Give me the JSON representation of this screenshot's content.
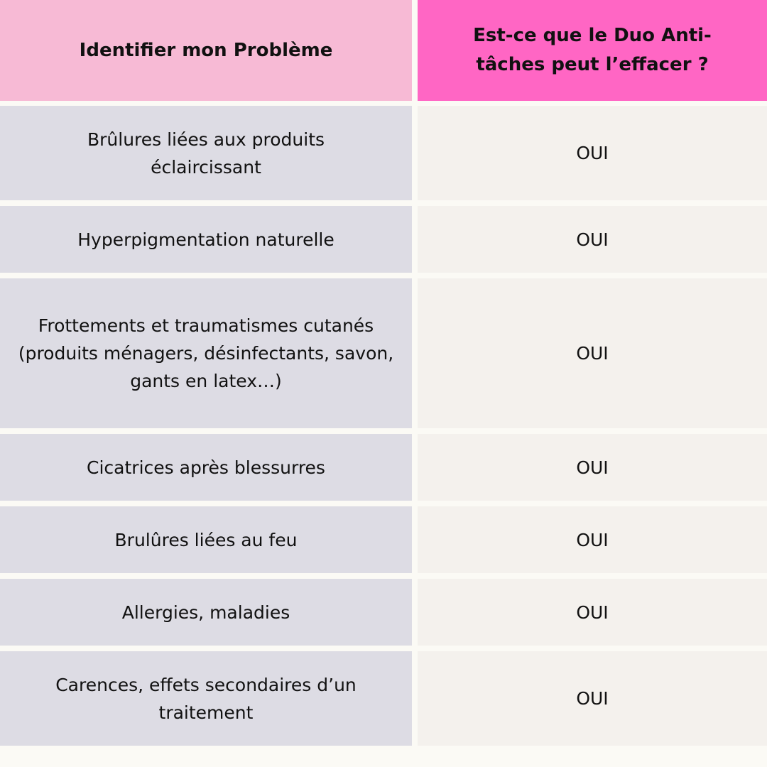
{
  "table": {
    "header": [
      "Identifier mon Problème",
      "Est-ce que le Duo Anti-tâches peut l’effacer ?"
    ],
    "rows": [
      [
        "Brûlures liées aux produits éclaircissant",
        "OUI"
      ],
      [
        "Hyperpigmentation naturelle",
        "OUI"
      ],
      [
        "Frottements et traumatismes cutanés (produits ménagers, désinfectants, savon, gants en latex…)",
        "OUI"
      ],
      [
        "Cicatrices après blessurres",
        "OUI"
      ],
      [
        "Brulûres liées au feu",
        "OUI"
      ],
      [
        "Allergies, maladies",
        "OUI"
      ],
      [
        "Carences, effets secondaires d’un traitement",
        "OUI"
      ]
    ]
  }
}
